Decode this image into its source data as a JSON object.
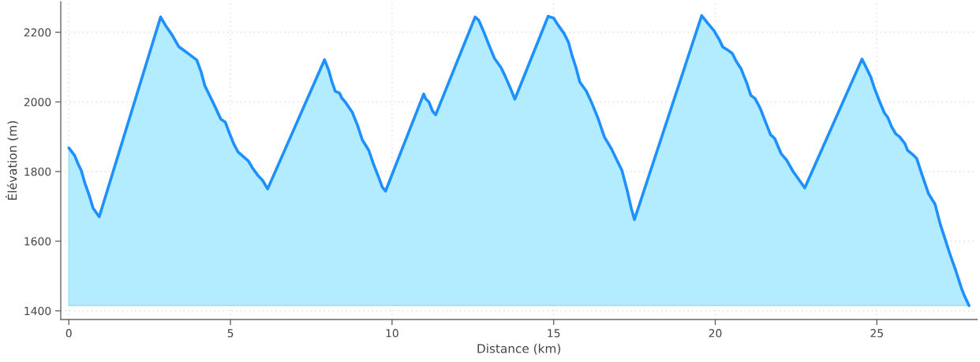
{
  "chart_data": {
    "type": "area",
    "xlabel": "Distance (km)",
    "ylabel": "Élévation (m)",
    "xlim": [
      -0.25,
      28.1
    ],
    "ylim": [
      1375,
      2288
    ],
    "xticks": [
      0,
      5,
      10,
      15,
      20,
      25
    ],
    "yticks": [
      1400,
      1600,
      1800,
      2000,
      2200
    ],
    "grid": true,
    "series": [
      {
        "color": "#1e90ff",
        "x": [
          0,
          0.18,
          0.28,
          0.38,
          0.5,
          0.63,
          0.75,
          0.85,
          0.94,
          2.84,
          2.99,
          3.19,
          3.4,
          3.56,
          3.72,
          3.96,
          4.09,
          4.21,
          4.37,
          4.53,
          4.7,
          4.84,
          4.94,
          5.1,
          5.23,
          5.39,
          5.55,
          5.67,
          5.84,
          6.0,
          6.15,
          7.91,
          8.04,
          8.13,
          8.24,
          8.38,
          8.44,
          8.56,
          8.77,
          8.93,
          9.08,
          9.28,
          9.42,
          9.58,
          9.7,
          9.8,
          10.98,
          11.04,
          11.14,
          11.25,
          11.35,
          12.57,
          12.68,
          12.84,
          13.0,
          13.17,
          13.37,
          13.49,
          13.65,
          13.8,
          14.83,
          15.0,
          15.12,
          15.32,
          15.46,
          15.57,
          15.69,
          15.81,
          16.01,
          16.18,
          16.38,
          16.57,
          16.79,
          16.95,
          17.11,
          17.28,
          17.4,
          17.5,
          19.58,
          19.76,
          19.96,
          20.13,
          20.23,
          20.37,
          20.53,
          20.64,
          20.8,
          20.98,
          21.1,
          21.23,
          21.39,
          21.55,
          21.71,
          21.84,
          22.04,
          22.2,
          22.41,
          22.61,
          22.77,
          24.54,
          24.68,
          24.81,
          24.93,
          25.09,
          25.23,
          25.34,
          25.46,
          25.58,
          25.71,
          25.87,
          25.95,
          26.11,
          26.23,
          26.39,
          26.6,
          26.8,
          26.97,
          27.09,
          27.25,
          27.45,
          27.62,
          27.72,
          27.85
        ],
        "values": [
          1868,
          1846,
          1823,
          1804,
          1766,
          1732,
          1695,
          1682,
          1670,
          2244,
          2220,
          2193,
          2159,
          2148,
          2137,
          2120,
          2087,
          2046,
          2016,
          1985,
          1951,
          1942,
          1917,
          1880,
          1857,
          1844,
          1831,
          1812,
          1790,
          1774,
          1750,
          2121,
          2091,
          2061,
          2031,
          2025,
          2012,
          1999,
          1970,
          1933,
          1891,
          1861,
          1823,
          1785,
          1755,
          1744,
          2023,
          2009,
          2000,
          1974,
          1963,
          2244,
          2235,
          2201,
          2163,
          2125,
          2099,
          2076,
          2042,
          2008,
          2246,
          2241,
          2223,
          2197,
          2171,
          2133,
          2099,
          2057,
          2031,
          1997,
          1951,
          1899,
          1865,
          1834,
          1804,
          1744,
          1695,
          1662,
          2248,
          2227,
          2205,
          2178,
          2158,
          2150,
          2139,
          2118,
          2095,
          2053,
          2019,
          2010,
          1982,
          1944,
          1906,
          1895,
          1851,
          1834,
          1800,
          1774,
          1753,
          2123,
          2097,
          2072,
          2038,
          2000,
          1969,
          1955,
          1928,
          1909,
          1899,
          1880,
          1861,
          1849,
          1838,
          1793,
          1736,
          1706,
          1646,
          1612,
          1566,
          1513,
          1464,
          1441,
          1415
        ]
      }
    ]
  }
}
